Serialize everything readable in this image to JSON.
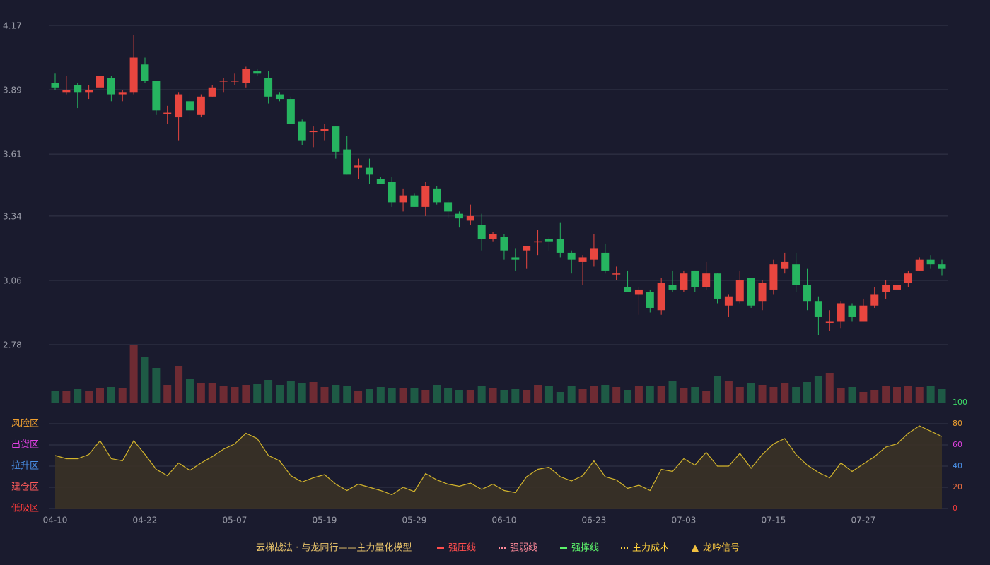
{
  "chart_data": [
    {
      "type": "candlestick",
      "categories": [
        "04-10",
        null,
        null,
        null,
        null,
        null,
        null,
        null,
        "04-22",
        null,
        null,
        null,
        null,
        null,
        null,
        null,
        "05-07",
        null,
        null,
        null,
        null,
        null,
        null,
        null,
        "05-19",
        null,
        null,
        null,
        null,
        null,
        null,
        null,
        "05-29",
        null,
        null,
        null,
        null,
        null,
        null,
        null,
        "06-10",
        null,
        null,
        null,
        null,
        null,
        null,
        null,
        "06-23",
        null,
        null,
        null,
        null,
        null,
        null,
        null,
        "07-03",
        null,
        null,
        null,
        null,
        null,
        null,
        null,
        "07-15",
        null,
        null,
        null,
        null,
        null,
        null,
        null,
        "07-27",
        null,
        null,
        null,
        null,
        null,
        null,
        null
      ],
      "open": [
        3.92,
        3.88,
        3.91,
        3.88,
        3.9,
        3.94,
        3.87,
        3.88,
        4.0,
        3.93,
        3.79,
        3.77,
        3.84,
        3.78,
        3.86,
        3.93,
        3.93,
        3.92,
        3.97,
        3.94,
        3.87,
        3.85,
        3.75,
        3.71,
        3.71,
        3.73,
        3.63,
        3.55,
        3.55,
        3.5,
        3.49,
        3.4,
        3.43,
        3.38,
        3.46,
        3.4,
        3.35,
        3.32,
        3.3,
        3.24,
        3.25,
        3.16,
        3.19,
        3.23,
        3.24,
        3.24,
        3.18,
        3.14,
        3.15,
        3.18,
        3.09,
        3.03,
        3.0,
        3.01,
        2.93,
        3.04,
        3.02,
        3.1,
        3.03,
        3.09,
        2.95,
        2.97,
        3.07,
        2.97,
        3.02,
        3.11,
        3.13,
        3.04,
        2.97,
        2.88,
        2.88,
        2.95,
        2.88,
        2.95,
        3.01,
        3.02,
        3.05,
        3.1,
        3.15,
        3.13
      ],
      "high": [
        3.96,
        3.95,
        3.92,
        3.91,
        3.96,
        3.95,
        3.89,
        4.13,
        4.03,
        3.93,
        3.82,
        3.88,
        3.88,
        3.87,
        3.91,
        3.94,
        3.96,
        3.99,
        3.98,
        3.97,
        3.88,
        3.86,
        3.76,
        3.73,
        3.74,
        3.73,
        3.69,
        3.59,
        3.59,
        3.51,
        3.51,
        3.46,
        3.44,
        3.49,
        3.47,
        3.41,
        3.36,
        3.39,
        3.35,
        3.27,
        3.26,
        3.2,
        3.21,
        3.28,
        3.25,
        3.31,
        3.19,
        3.17,
        3.26,
        3.22,
        3.12,
        3.1,
        3.03,
        3.02,
        3.07,
        3.1,
        3.1,
        3.1,
        3.14,
        3.09,
        3.0,
        3.1,
        3.07,
        3.06,
        3.15,
        3.18,
        3.18,
        3.11,
        2.99,
        2.93,
        2.97,
        2.96,
        2.98,
        3.03,
        3.06,
        3.1,
        3.1,
        3.16,
        3.17,
        3.15
      ],
      "low": [
        3.89,
        3.87,
        3.81,
        3.85,
        3.87,
        3.84,
        3.84,
        3.87,
        3.92,
        3.78,
        3.74,
        3.67,
        3.75,
        3.77,
        3.86,
        3.88,
        3.91,
        3.9,
        3.95,
        3.83,
        3.84,
        3.74,
        3.65,
        3.64,
        3.67,
        3.59,
        3.52,
        3.5,
        3.48,
        3.48,
        3.38,
        3.36,
        3.38,
        3.34,
        3.39,
        3.33,
        3.29,
        3.3,
        3.19,
        3.23,
        3.15,
        3.1,
        3.11,
        3.17,
        3.19,
        3.16,
        3.09,
        3.04,
        3.12,
        3.09,
        3.06,
        3.01,
        2.91,
        2.92,
        2.91,
        3.01,
        3.01,
        3.01,
        3.02,
        2.96,
        2.9,
        2.96,
        2.94,
        2.93,
        3.0,
        3.09,
        3.01,
        2.93,
        2.82,
        2.84,
        2.85,
        2.88,
        2.88,
        2.94,
        2.98,
        3.02,
        3.03,
        3.1,
        3.11,
        3.08
      ],
      "close": [
        3.9,
        3.89,
        3.88,
        3.89,
        3.95,
        3.87,
        3.88,
        4.03,
        3.93,
        3.8,
        3.79,
        3.87,
        3.8,
        3.86,
        3.9,
        3.93,
        3.93,
        3.98,
        3.96,
        3.86,
        3.85,
        3.74,
        3.67,
        3.71,
        3.72,
        3.62,
        3.52,
        3.56,
        3.52,
        3.48,
        3.4,
        3.43,
        3.38,
        3.47,
        3.4,
        3.36,
        3.33,
        3.34,
        3.24,
        3.26,
        3.19,
        3.15,
        3.21,
        3.23,
        3.23,
        3.18,
        3.15,
        3.16,
        3.2,
        3.1,
        3.09,
        3.01,
        3.02,
        2.94,
        3.05,
        3.02,
        3.09,
        3.03,
        3.09,
        2.98,
        2.99,
        3.06,
        2.95,
        3.05,
        3.13,
        3.14,
        3.04,
        2.97,
        2.9,
        2.88,
        2.96,
        2.9,
        2.95,
        3.0,
        3.04,
        3.04,
        3.09,
        3.15,
        3.13,
        3.11
      ],
      "up_color": "#e8463f",
      "down_color": "#26b460",
      "ylim": [
        2.78,
        4.17
      ],
      "yticks": [
        4.17,
        3.89,
        3.61,
        3.34,
        3.06,
        2.78
      ],
      "grid": true
    },
    {
      "type": "bar",
      "values": [
        16,
        16,
        19,
        16,
        21,
        22,
        20,
        82,
        64,
        49,
        25,
        52,
        33,
        28,
        27,
        24,
        22,
        25,
        26,
        32,
        25,
        30,
        28,
        29,
        22,
        25,
        24,
        16,
        19,
        22,
        21,
        21,
        21,
        18,
        25,
        20,
        18,
        18,
        23,
        21,
        18,
        19,
        18,
        25,
        23,
        15,
        24,
        19,
        24,
        25,
        22,
        18,
        24,
        23,
        24,
        30,
        21,
        22,
        17,
        37,
        30,
        22,
        28,
        25,
        22,
        27,
        22,
        29,
        38,
        42,
        21,
        22,
        15,
        18,
        24,
        22,
        23,
        22,
        24,
        19
      ],
      "up_color": "#6e2b33",
      "down_color": "#1e5a45"
    },
    {
      "type": "area",
      "values": [
        50,
        47,
        47,
        51,
        64,
        47,
        45,
        64,
        51,
        37,
        31,
        43,
        36,
        43,
        49,
        56,
        61,
        71,
        66,
        50,
        45,
        31,
        25,
        29,
        32,
        23,
        17,
        23,
        20,
        17,
        13,
        20,
        16,
        33,
        27,
        23,
        21,
        24,
        18,
        23,
        17,
        15,
        30,
        37,
        39,
        30,
        26,
        31,
        45,
        30,
        27,
        19,
        22,
        17,
        37,
        35,
        47,
        41,
        53,
        40,
        40,
        52,
        38,
        51,
        61,
        66,
        51,
        41,
        34,
        29,
        43,
        35,
        42,
        49,
        58,
        61,
        71,
        78,
        73,
        68
      ],
      "color": "#d2b42c",
      "fill": "#3a3226",
      "ylim": [
        0,
        100
      ],
      "yticks": [
        100,
        80,
        60,
        40,
        20,
        0
      ],
      "ytick_colors": [
        "#3ee06a",
        "#f0a030",
        "#e040e0",
        "#4a90e8",
        "#f07040",
        "#ff3b3b"
      ],
      "zones": [
        {
          "value": 80,
          "label": "风险区"
        },
        {
          "value": 60,
          "label": "出货区"
        },
        {
          "value": 40,
          "label": "拉升区"
        },
        {
          "value": 20,
          "label": "建仓区"
        },
        {
          "value": 0,
          "label": "低吸区"
        }
      ],
      "zone_colors": [
        "#f0a030",
        "#e040e0",
        "#4a90e8",
        "#ff5a5a",
        "#ff3b3b"
      ],
      "grid": true
    }
  ],
  "footer": {
    "title": "云梯战法 · 与龙同行——主力量化模型",
    "legend": [
      {
        "name": "强压线",
        "color": "#ff4d4d",
        "style": "solid"
      },
      {
        "name": "强弱线",
        "color": "#ff8a9a",
        "style": "dashed"
      },
      {
        "name": "强撑线",
        "color": "#5cf26a",
        "style": "solid"
      },
      {
        "name": "主力成本",
        "color": "#ffd23c",
        "style": "dashed"
      },
      {
        "name": "龙吟信号",
        "color": "#f0c040",
        "style": "triangle"
      }
    ]
  }
}
